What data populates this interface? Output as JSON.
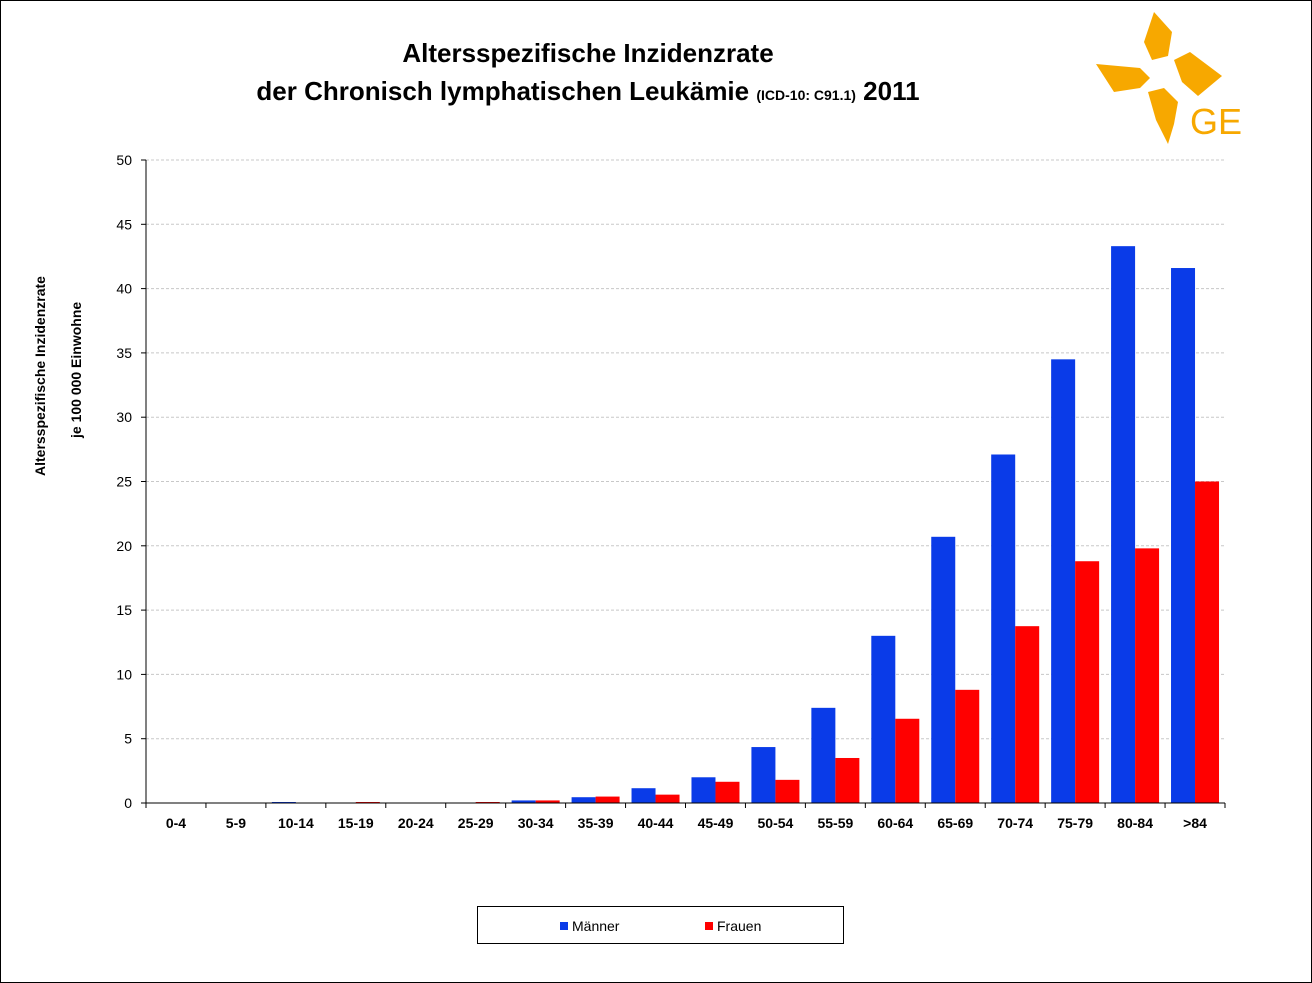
{
  "title": {
    "line1": "Altersspezifische Inzidenzrate",
    "line2_main": "der  Chronisch lymphatischen Leukämie ",
    "line2_small": "(ICD-10: C91.1)",
    "line2_year": " 2011"
  },
  "logo": {
    "text": "GEKID",
    "icon": "gekid-logo-icon",
    "color": "#f7a800"
  },
  "colors": {
    "men": "#0a3be8",
    "women": "#ff0000",
    "grid": "#c8c8c8"
  },
  "chart_data": {
    "type": "bar",
    "title": "Altersspezifische Inzidenzrate der  Chronisch lymphatischen Leukämie (ICD-10: C91.1) 2011",
    "ylabel_line1": "Altersspezifische  Inzidenzrate",
    "ylabel_line2": "je 100 000 Einwohne",
    "xlabel": "",
    "ylim": [
      0,
      50
    ],
    "yticks": [
      0,
      5,
      10,
      15,
      20,
      25,
      30,
      35,
      40,
      45,
      50
    ],
    "grid": true,
    "legend_position": "bottom-center",
    "categories": [
      "0-4",
      "5-9",
      "10-14",
      "15-19",
      "20-24",
      "25-29",
      "30-34",
      "35-39",
      "40-44",
      "45-49",
      "50-54",
      "55-59",
      "60-64",
      "65-69",
      "70-74",
      "75-79",
      "80-84",
      ">84"
    ],
    "series": [
      {
        "name": "Männer",
        "color": "#0a3be8",
        "values": [
          0,
          0,
          0.05,
          0,
          0,
          0,
          0.2,
          0.45,
          1.15,
          2.0,
          4.35,
          7.4,
          13.0,
          20.7,
          27.1,
          34.5,
          43.3,
          41.6
        ]
      },
      {
        "name": "Frauen",
        "color": "#ff0000",
        "values": [
          0,
          0,
          0,
          0.05,
          0,
          0.05,
          0.2,
          0.5,
          0.65,
          1.65,
          1.8,
          3.5,
          6.55,
          8.8,
          13.75,
          18.8,
          19.8,
          25.0
        ]
      }
    ]
  }
}
